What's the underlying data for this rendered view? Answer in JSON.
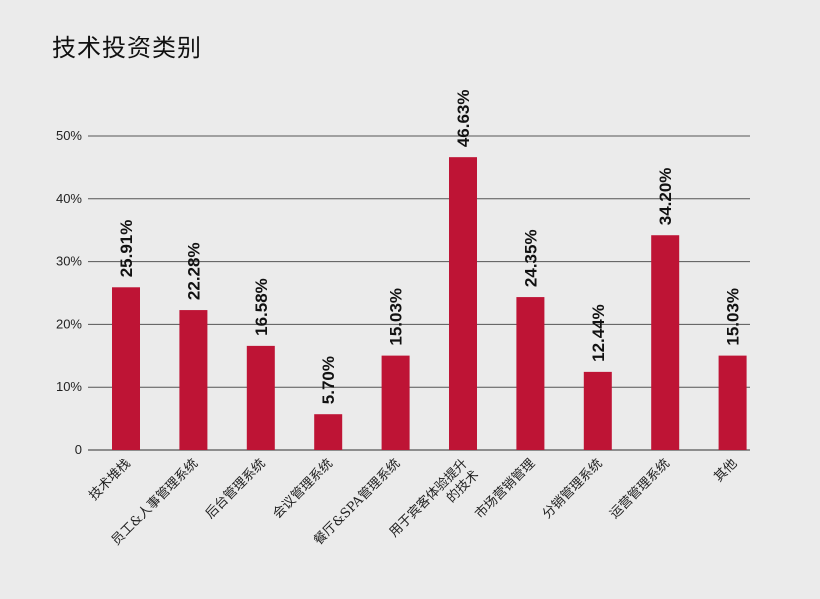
{
  "chart_data": {
    "type": "bar",
    "title": "技术投资类别",
    "categories": [
      [
        "技术堆栈"
      ],
      [
        "员工&人事管理系统"
      ],
      [
        "后台管理系统"
      ],
      [
        "会议管理系统"
      ],
      [
        "餐厅&SPA管理系统"
      ],
      [
        "用于宾客体验提升",
        "的技术"
      ],
      [
        "市场营销管理"
      ],
      [
        "分销管理系统"
      ],
      [
        "运营管理系统"
      ],
      [
        "其他"
      ]
    ],
    "values": [
      25.91,
      22.28,
      16.58,
      5.7,
      15.03,
      46.63,
      24.35,
      12.44,
      34.2,
      15.03
    ],
    "value_labels": [
      "25.91%",
      "22.28%",
      "16.58%",
      "5.70%",
      "15.03%",
      "46.63%",
      "24.35%",
      "12.44%",
      "34.20%",
      "15.03%"
    ],
    "ylim": [
      0,
      50
    ],
    "yticks": [
      0,
      10,
      20,
      30,
      40,
      50
    ],
    "ytick_labels": [
      "0",
      "10%",
      "20%",
      "30%",
      "40%",
      "50%"
    ],
    "grid": true,
    "xlabel": "",
    "ylabel": "",
    "colors": {
      "bar": "#be1435",
      "grid": "#555555",
      "background": "#ebebeb"
    }
  }
}
